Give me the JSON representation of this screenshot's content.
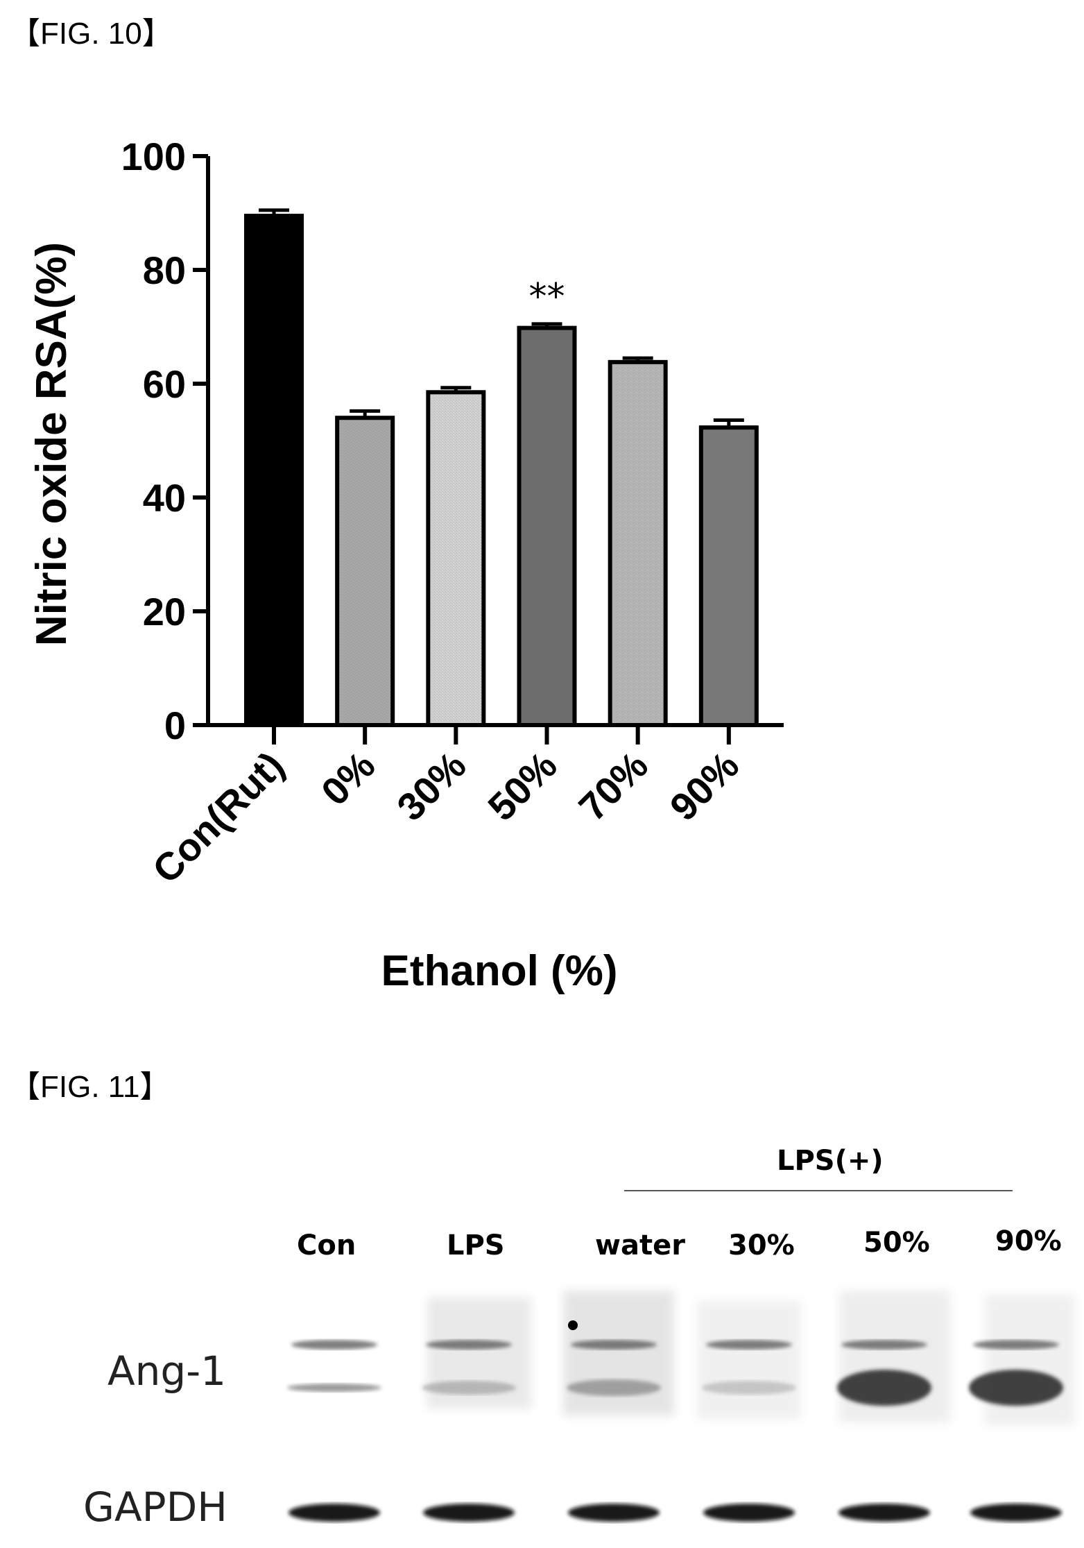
{
  "figure10": {
    "label": "【FIG. 10】",
    "chart_data": {
      "type": "bar",
      "categories": [
        "Con(Rut)",
        "0%",
        "30%",
        "50%",
        "70%",
        "90%"
      ],
      "values": [
        89.5,
        54,
        58.5,
        69.8,
        63.8,
        52.3
      ],
      "errors": [
        1.0,
        1.2,
        0.8,
        0.7,
        0.7,
        1.3
      ],
      "bar_colors": [
        "#000000",
        "#a8a8a8",
        "#d0d0d0",
        "#6e6e6e",
        "#b5b5b5",
        "#7a7a7a"
      ],
      "ylabel": "Nitric oxide RSA(%)",
      "xlabel": "Ethanol (%)",
      "ylim": [
        0,
        100
      ],
      "yticks": [
        0,
        20,
        40,
        60,
        80,
        100
      ],
      "annotations": [
        {
          "category": "50%",
          "text": "**"
        }
      ]
    }
  },
  "figure11": {
    "label": "【FIG. 11】",
    "group_label": "LPS(+)",
    "lanes": [
      "Con",
      "LPS",
      "water",
      "30%",
      "50%",
      "90%"
    ],
    "rows": [
      "Ang-1",
      "GAPDH"
    ]
  }
}
